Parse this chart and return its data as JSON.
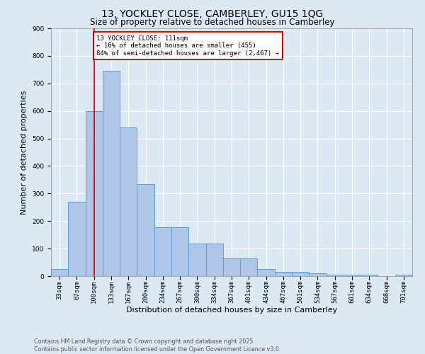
{
  "title1": "13, YOCKLEY CLOSE, CAMBERLEY, GU15 1QG",
  "title2": "Size of property relative to detached houses in Camberley",
  "xlabel": "Distribution of detached houses by size in Camberley",
  "ylabel": "Number of detached properties",
  "bar_values": [
    25,
    270,
    600,
    745,
    540,
    335,
    178,
    178,
    118,
    118,
    65,
    65,
    25,
    15,
    15,
    10,
    5,
    5,
    5,
    0,
    5
  ],
  "categories": [
    "33sqm",
    "67sqm",
    "100sqm",
    "133sqm",
    "167sqm",
    "200sqm",
    "234sqm",
    "267sqm",
    "300sqm",
    "334sqm",
    "367sqm",
    "401sqm",
    "434sqm",
    "467sqm",
    "501sqm",
    "534sqm",
    "567sqm",
    "601sqm",
    "634sqm",
    "668sqm",
    "701sqm"
  ],
  "bar_color": "#aec6e8",
  "bar_edge_color": "#5b9bd5",
  "background_color": "#dde8f5",
  "grid_color": "#ffffff",
  "vline_x": 2,
  "vline_color": "#cc0000",
  "annotation_line1": "13 YOCKLEY CLOSE: 111sqm",
  "annotation_line2": "← 16% of detached houses are smaller (455)",
  "annotation_line3": "84% of semi-detached houses are larger (2,467) →",
  "annotation_box_color": "#ffffff",
  "annotation_box_edge": "#cc0000",
  "ylim": [
    0,
    900
  ],
  "yticks": [
    0,
    100,
    200,
    300,
    400,
    500,
    600,
    700,
    800,
    900
  ],
  "footer1": "Contains HM Land Registry data © Crown copyright and database right 2025.",
  "footer2": "Contains public sector information licensed under the Open Government Licence v3.0.",
  "title1_fontsize": 10,
  "title2_fontsize": 8.5,
  "tick_fontsize": 6.5,
  "ylabel_fontsize": 8,
  "xlabel_fontsize": 8,
  "footer_fontsize": 5.8,
  "annot_fontsize": 6.5
}
